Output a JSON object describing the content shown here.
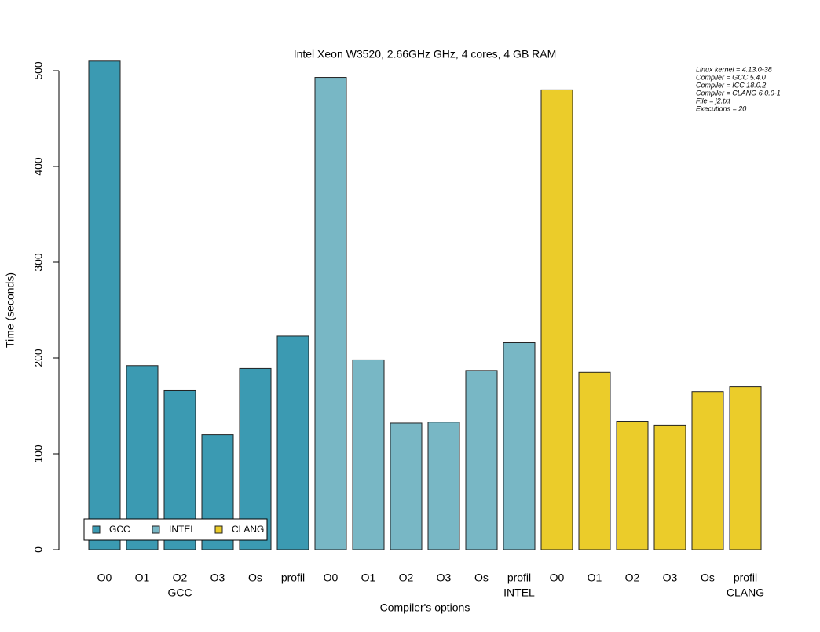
{
  "chart_data": {
    "type": "bar",
    "title": "Intel Xeon W3520, 2.66GHz GHz, 4 cores, 4 GB RAM",
    "x_label": "Compiler's options",
    "y_label": "Time (seconds)",
    "categories": [
      "O0",
      "O1",
      "O2",
      "O3",
      "Os",
      "profil"
    ],
    "series": [
      {
        "name": "GCC",
        "color": "#3b9ab2",
        "values": [
          510,
          192,
          166,
          120,
          189,
          223
        ]
      },
      {
        "name": "INTEL",
        "color": "#78b7c5",
        "values": [
          493,
          198,
          132,
          133,
          187,
          216
        ]
      },
      {
        "name": "CLANG",
        "color": "#ebcc2a",
        "values": [
          480,
          185,
          134,
          130,
          165,
          170
        ]
      }
    ],
    "annotation": [
      "Linux kernel = 4.13.0-38",
      "Compiler = GCC 5.4.0",
      "Compiler = ICC 18.0.2",
      "Compiler = CLANG 6.0.0-1",
      "File = j2.txt",
      "Executions = 20"
    ],
    "ylim": [
      0,
      500
    ],
    "yticks": [
      0,
      100,
      200,
      300,
      400,
      500
    ],
    "legend": "bottom-left"
  }
}
